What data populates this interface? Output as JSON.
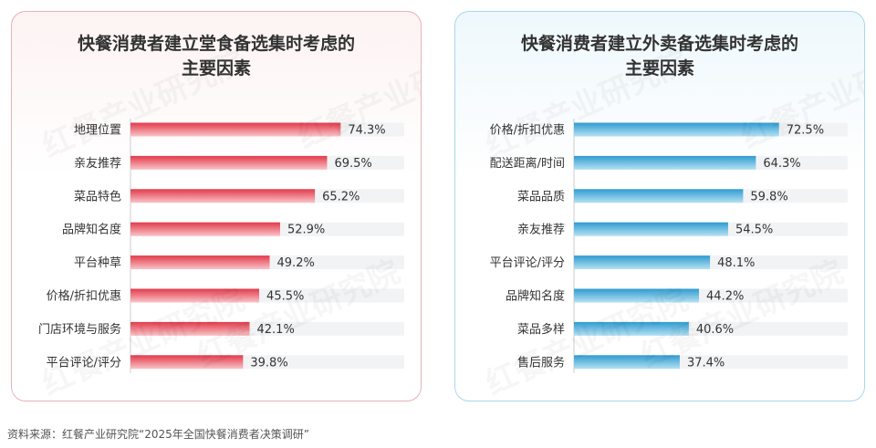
{
  "colors": {
    "red_bar_start": "#e23a4a",
    "red_bar_end": "#f9c4c8",
    "blue_bar_start": "#2f9bd0",
    "blue_bar_end": "#b5e1f3",
    "bar_track": "#f2f3f5",
    "left_border": "#e7b2b8",
    "right_border": "#a9d8ea"
  },
  "watermark": "红餐产业研究院",
  "source": "资料来源：红餐产业研究院“2025年全国快餐消费者决策调研”",
  "chart_data": [
    {
      "type": "bar",
      "orientation": "horizontal",
      "title": "快餐消费者建立堂食备选集时考虑的\n主要因素",
      "categories": [
        "地理位置",
        "亲友推荐",
        "菜品特色",
        "品牌知名度",
        "平台种草",
        "价格/折扣优惠",
        "门店环境与服务",
        "平台评论/评分"
      ],
      "values": [
        74.3,
        69.5,
        65.2,
        52.9,
        49.2,
        45.5,
        42.1,
        39.8
      ],
      "value_labels": [
        "74.3%",
        "69.5%",
        "65.2%",
        "52.9%",
        "49.2%",
        "45.5%",
        "42.1%",
        "39.8%"
      ],
      "unit": "%",
      "xlim": [
        0,
        100
      ],
      "color": "red",
      "grid": false,
      "legend": "none"
    },
    {
      "type": "bar",
      "orientation": "horizontal",
      "title": "快餐消费者建立外卖备选集时考虑的\n主要因素",
      "categories": [
        "价格/折扣优惠",
        "配送距离/时间",
        "菜品品质",
        "亲友推荐",
        "平台评论/评分",
        "品牌知名度",
        "菜品多样",
        "售后服务"
      ],
      "values": [
        72.5,
        64.3,
        59.8,
        54.5,
        48.1,
        44.2,
        40.6,
        37.4
      ],
      "value_labels": [
        "72.5%",
        "64.3%",
        "59.8%",
        "54.5%",
        "48.1%",
        "44.2%",
        "40.6%",
        "37.4%"
      ],
      "unit": "%",
      "xlim": [
        0,
        100
      ],
      "color": "blue",
      "grid": false,
      "legend": "none"
    }
  ]
}
